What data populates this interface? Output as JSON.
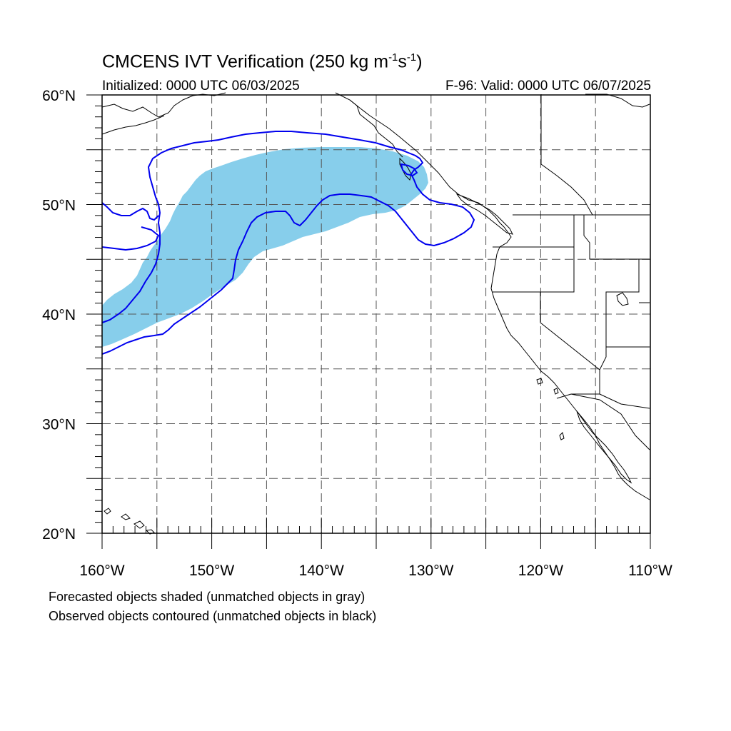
{
  "title": {
    "prefix": "CMCENS IVT Verification (250 kg m",
    "exp1": "-1",
    "mid": "s",
    "exp2": "-1",
    "suffix": ")"
  },
  "initialized": "Initialized: 0000 UTC 06/03/2025",
  "valid": "F-96: Valid: 0000 UTC 06/07/2025",
  "legend": {
    "forecast": "Forecasted objects shaded (unmatched objects in gray)",
    "observed": "Observed objects contoured (unmatched objects in black)"
  },
  "map": {
    "lon_range": [
      -160,
      -110
    ],
    "lat_range": [
      20,
      60
    ],
    "lat_labels": [
      {
        "lat": 60,
        "text": "60°N"
      },
      {
        "lat": 50,
        "text": "50°N"
      },
      {
        "lat": 40,
        "text": "40°N"
      },
      {
        "lat": 30,
        "text": "30°N"
      },
      {
        "lat": 20,
        "text": "20°N"
      }
    ],
    "lon_labels": [
      {
        "lon": -160,
        "text": "160°W"
      },
      {
        "lon": -150,
        "text": "150°W"
      },
      {
        "lon": -140,
        "text": "140°W"
      },
      {
        "lon": -130,
        "text": "130°W"
      },
      {
        "lon": -120,
        "text": "120°W"
      },
      {
        "lon": -110,
        "text": "110°W"
      }
    ],
    "grid_spacing_deg": 5,
    "colors": {
      "forecast_fill": "#87ceeb",
      "observed_contour": "#0000ee",
      "coastline": "#000000",
      "grid": "#555555"
    }
  }
}
